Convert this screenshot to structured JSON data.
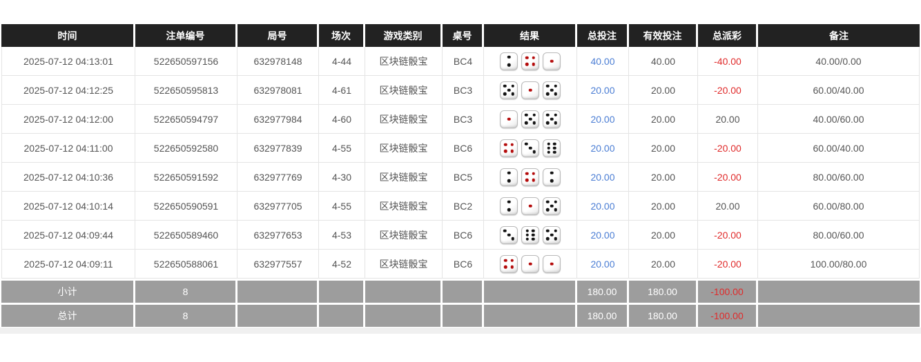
{
  "table": {
    "columns": [
      {
        "label": "时间"
      },
      {
        "label": "注单编号"
      },
      {
        "label": "局号"
      },
      {
        "label": "场次"
      },
      {
        "label": "游戏类别"
      },
      {
        "label": "桌号"
      },
      {
        "label": "结果"
      },
      {
        "label": "总投注"
      },
      {
        "label": "有效投注"
      },
      {
        "label": "总派彩"
      },
      {
        "label": "备注"
      }
    ],
    "rows": [
      {
        "time": "2025-07-12 04:13:01",
        "bet_id": "522650597156",
        "round_id": "632978148",
        "session": "4-44",
        "game_type": "区块链骰宝",
        "table_no": "BC4",
        "dice": [
          2,
          4,
          1
        ],
        "total_bet": "40.00",
        "valid_bet": "40.00",
        "total_payout": "-40.00",
        "remark": "40.00/0.00"
      },
      {
        "time": "2025-07-12 04:12:25",
        "bet_id": "522650595813",
        "round_id": "632978081",
        "session": "4-61",
        "game_type": "区块链骰宝",
        "table_no": "BC3",
        "dice": [
          5,
          1,
          5
        ],
        "total_bet": "20.00",
        "valid_bet": "20.00",
        "total_payout": "-20.00",
        "remark": "60.00/40.00"
      },
      {
        "time": "2025-07-12 04:12:00",
        "bet_id": "522650594797",
        "round_id": "632977984",
        "session": "4-60",
        "game_type": "区块链骰宝",
        "table_no": "BC3",
        "dice": [
          1,
          5,
          5
        ],
        "total_bet": "20.00",
        "valid_bet": "20.00",
        "total_payout": "20.00",
        "remark": "40.00/60.00"
      },
      {
        "time": "2025-07-12 04:11:00",
        "bet_id": "522650592580",
        "round_id": "632977839",
        "session": "4-55",
        "game_type": "区块链骰宝",
        "table_no": "BC6",
        "dice": [
          4,
          3,
          6
        ],
        "total_bet": "20.00",
        "valid_bet": "20.00",
        "total_payout": "-20.00",
        "remark": "60.00/40.00"
      },
      {
        "time": "2025-07-12 04:10:36",
        "bet_id": "522650591592",
        "round_id": "632977769",
        "session": "4-30",
        "game_type": "区块链骰宝",
        "table_no": "BC5",
        "dice": [
          2,
          4,
          2
        ],
        "total_bet": "20.00",
        "valid_bet": "20.00",
        "total_payout": "-20.00",
        "remark": "80.00/60.00"
      },
      {
        "time": "2025-07-12 04:10:14",
        "bet_id": "522650590591",
        "round_id": "632977705",
        "session": "4-55",
        "game_type": "区块链骰宝",
        "table_no": "BC2",
        "dice": [
          2,
          1,
          5
        ],
        "total_bet": "20.00",
        "valid_bet": "20.00",
        "total_payout": "20.00",
        "remark": "60.00/80.00"
      },
      {
        "time": "2025-07-12 04:09:44",
        "bet_id": "522650589460",
        "round_id": "632977653",
        "session": "4-53",
        "game_type": "区块链骰宝",
        "table_no": "BC6",
        "dice": [
          3,
          6,
          5
        ],
        "total_bet": "20.00",
        "valid_bet": "20.00",
        "total_payout": "-20.00",
        "remark": "80.00/60.00"
      },
      {
        "time": "2025-07-12 04:09:11",
        "bet_id": "522650588061",
        "round_id": "632977557",
        "session": "4-52",
        "game_type": "区块链骰宝",
        "table_no": "BC6",
        "dice": [
          4,
          1,
          1
        ],
        "total_bet": "20.00",
        "valid_bet": "20.00",
        "total_payout": "-20.00",
        "remark": "100.00/80.00"
      }
    ],
    "footer": [
      {
        "label": "小计",
        "count": "8",
        "total_bet": "180.00",
        "valid_bet": "180.00",
        "total_payout": "-100.00"
      },
      {
        "label": "总计",
        "count": "8",
        "total_bet": "180.00",
        "valid_bet": "180.00",
        "total_payout": "-100.00"
      }
    ]
  },
  "colors": {
    "header_bg": "#222222",
    "footer_bg": "#9d9d9d",
    "accent_blue": "#4a7dd4",
    "negative_red": "#e02a2a",
    "dice_red_pip": "#b40b0b"
  }
}
